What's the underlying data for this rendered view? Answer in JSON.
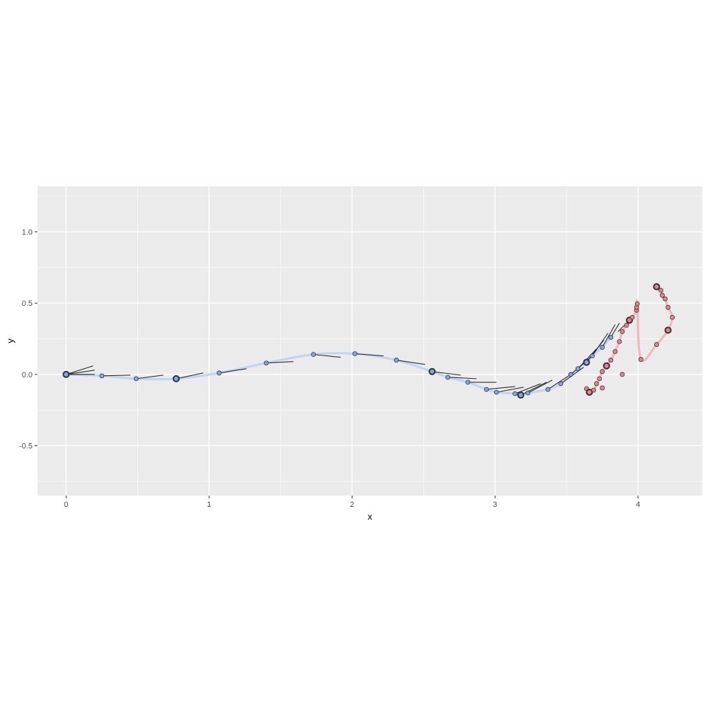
{
  "chart_data": {
    "type": "scatter",
    "title": "",
    "xlabel": "x",
    "ylabel": "y",
    "xlim": [
      -0.2,
      4.45
    ],
    "ylim": [
      -0.85,
      1.32
    ],
    "x_ticks": [
      0,
      1,
      2,
      3,
      4
    ],
    "x_tick_labels": [
      "0",
      "1",
      "2",
      "3",
      "4"
    ],
    "y_ticks": [
      -0.5,
      0.0,
      0.5,
      1.0
    ],
    "y_tick_labels": [
      "-0.5",
      "0.0",
      "0.5",
      "1.0"
    ],
    "grid": true,
    "legend": "none",
    "colors": {
      "panel": "#ebebeb",
      "grid_major": "#ffffff",
      "blue_point": "#7aa6ef",
      "blue_path": "#c2d4f5",
      "red_point": "#ee7d86",
      "red_path": "#f4b6bb",
      "segment": "#1a1a1a"
    },
    "blue_path": {
      "x": [
        0,
        0.25,
        0.49,
        0.77,
        1.07,
        1.4,
        1.73,
        2.02,
        2.31,
        2.56,
        2.67,
        2.81,
        2.94,
        3.01,
        3.14,
        3.18,
        3.23,
        3.37,
        3.46,
        3.53,
        3.58,
        3.64,
        3.68,
        3.75,
        3.81
      ],
      "y": [
        0.0,
        -0.01,
        -0.03,
        -0.03,
        0.01,
        0.08,
        0.14,
        0.145,
        0.1,
        0.02,
        -0.02,
        -0.055,
        -0.105,
        -0.125,
        -0.135,
        -0.145,
        -0.13,
        -0.105,
        -0.065,
        0.0,
        0.04,
        0.085,
        0.13,
        0.19,
        0.26
      ]
    },
    "blue_points": {
      "x": [
        0,
        0.25,
        0.49,
        0.77,
        1.07,
        1.4,
        1.73,
        2.02,
        2.31,
        2.56,
        2.67,
        2.81,
        2.94,
        3.01,
        3.14,
        3.18,
        3.23,
        3.37,
        3.46,
        3.53,
        3.58,
        3.64,
        3.68,
        3.75,
        3.81
      ],
      "y": [
        0.0,
        -0.01,
        -0.03,
        -0.03,
        0.01,
        0.08,
        0.14,
        0.145,
        0.1,
        0.02,
        -0.02,
        -0.055,
        -0.105,
        -0.125,
        -0.135,
        -0.145,
        -0.13,
        -0.105,
        -0.065,
        0.0,
        0.04,
        0.085,
        0.13,
        0.19,
        0.26
      ],
      "highlight_indices": [
        0,
        3,
        9,
        15,
        21
      ]
    },
    "red_path": {
      "x": [
        3.64,
        3.66,
        3.69,
        3.71,
        3.73,
        3.75,
        3.78,
        3.81,
        3.84,
        3.87,
        3.89,
        3.92,
        3.94,
        3.96,
        3.99,
        3.99,
        3.995,
        4.02,
        4.13,
        4.21,
        4.24,
        4.21,
        4.19,
        4.17,
        4.16,
        4.13
      ],
      "y": [
        -0.1,
        -0.125,
        -0.11,
        -0.065,
        -0.03,
        0.02,
        0.06,
        0.1,
        0.16,
        0.23,
        0.3,
        0.345,
        0.38,
        0.4,
        0.45,
        0.47,
        0.495,
        0.105,
        0.21,
        0.31,
        0.4,
        0.47,
        0.53,
        0.555,
        0.59,
        0.615
      ]
    },
    "red_points": {
      "x": [
        3.64,
        3.66,
        3.69,
        3.71,
        3.73,
        3.75,
        3.78,
        3.81,
        3.84,
        3.87,
        3.89,
        3.92,
        3.94,
        3.96,
        3.99,
        3.99,
        3.995,
        3.75,
        3.89,
        4.02,
        4.13,
        4.21,
        4.24,
        4.21,
        4.19,
        4.17,
        4.16,
        4.13
      ],
      "y": [
        -0.1,
        -0.125,
        -0.11,
        -0.065,
        -0.03,
        0.02,
        0.06,
        0.1,
        0.16,
        0.23,
        0.3,
        0.345,
        0.38,
        0.4,
        0.45,
        0.47,
        0.495,
        -0.095,
        0.0,
        0.105,
        0.21,
        0.31,
        0.4,
        0.47,
        0.53,
        0.555,
        0.59,
        0.615
      ],
      "highlight_indices": [
        1,
        6,
        12,
        21,
        27
      ]
    },
    "segments": [
      {
        "x": 0,
        "y": 0,
        "xend": 0.2,
        "yend": 0.0
      },
      {
        "x": 0,
        "y": 0,
        "xend": 0.2,
        "yend": 0.03
      },
      {
        "x": 0,
        "y": 0,
        "xend": 0.19,
        "yend": 0.06
      },
      {
        "x": 0.25,
        "y": -0.01,
        "xend": 0.45,
        "yend": -0.005
      },
      {
        "x": 0.49,
        "y": -0.03,
        "xend": 0.68,
        "yend": -0.005
      },
      {
        "x": 0.77,
        "y": -0.03,
        "xend": 0.96,
        "yend": 0.01
      },
      {
        "x": 1.07,
        "y": 0.01,
        "xend": 1.26,
        "yend": 0.04
      },
      {
        "x": 1.4,
        "y": 0.08,
        "xend": 1.59,
        "yend": 0.09
      },
      {
        "x": 1.73,
        "y": 0.14,
        "xend": 1.92,
        "yend": 0.12
      },
      {
        "x": 2.02,
        "y": 0.145,
        "xend": 2.22,
        "yend": 0.13
      },
      {
        "x": 2.31,
        "y": 0.1,
        "xend": 2.51,
        "yend": 0.07
      },
      {
        "x": 2.56,
        "y": 0.02,
        "xend": 2.76,
        "yend": -0.005
      },
      {
        "x": 2.67,
        "y": -0.02,
        "xend": 2.87,
        "yend": -0.03
      },
      {
        "x": 2.81,
        "y": -0.055,
        "xend": 3.01,
        "yend": -0.055
      },
      {
        "x": 2.94,
        "y": -0.105,
        "xend": 3.14,
        "yend": -0.085
      },
      {
        "x": 3.01,
        "y": -0.125,
        "xend": 3.2,
        "yend": -0.09
      },
      {
        "x": 3.14,
        "y": -0.135,
        "xend": 3.32,
        "yend": -0.065
      },
      {
        "x": 3.18,
        "y": -0.145,
        "xend": 3.36,
        "yend": -0.055
      },
      {
        "x": 3.23,
        "y": -0.13,
        "xend": 3.4,
        "yend": -0.04
      },
      {
        "x": 3.37,
        "y": -0.105,
        "xend": 3.53,
        "yend": 0.0
      },
      {
        "x": 3.46,
        "y": -0.065,
        "xend": 3.62,
        "yend": 0.05
      },
      {
        "x": 3.53,
        "y": 0.0,
        "xend": 3.67,
        "yend": 0.12
      },
      {
        "x": 3.58,
        "y": 0.04,
        "xend": 3.71,
        "yend": 0.18
      },
      {
        "x": 3.64,
        "y": 0.085,
        "xend": 3.76,
        "yend": 0.24
      },
      {
        "x": 3.68,
        "y": 0.13,
        "xend": 3.79,
        "yend": 0.29
      },
      {
        "x": 3.75,
        "y": 0.19,
        "xend": 3.84,
        "yend": 0.35
      },
      {
        "x": 3.81,
        "y": 0.26,
        "xend": 3.87,
        "yend": 0.36
      },
      {
        "x": 3.86,
        "y": 0.3,
        "xend": 3.95,
        "yend": 0.39
      }
    ]
  }
}
